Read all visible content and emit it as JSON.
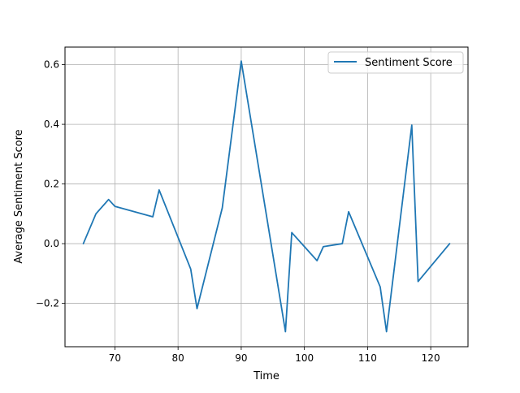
{
  "chart_data": {
    "type": "line",
    "title": "",
    "xlabel": "Time",
    "ylabel": "Average Sentiment Score",
    "xlim": [
      62.1,
      125.9
    ],
    "ylim": [
      -0.3455,
      0.6588
    ],
    "grid": true,
    "legend_position": "upper right",
    "x_ticks": [
      70,
      80,
      90,
      100,
      110,
      120
    ],
    "y_ticks": [
      -0.2,
      0.0,
      0.2,
      0.4,
      0.6
    ],
    "x_tick_labels": [
      "70",
      "80",
      "90",
      "100",
      "110",
      "120"
    ],
    "y_tick_labels": [
      "−0.2",
      "0.0",
      "0.2",
      "0.4",
      "0.6"
    ],
    "series": [
      {
        "name": "Sentiment Score",
        "color": "#1f77b4",
        "x": [
          65,
          67,
          69,
          70,
          76,
          77,
          82,
          83,
          87,
          90,
          97,
          98,
          102,
          103,
          106,
          107,
          112,
          113,
          117,
          118,
          123
        ],
        "y": [
          0.0,
          0.1,
          0.148,
          0.125,
          0.09,
          0.18,
          -0.085,
          -0.218,
          0.12,
          0.612,
          -0.295,
          0.037,
          -0.057,
          -0.01,
          0.0,
          0.107,
          -0.145,
          -0.295,
          0.397,
          -0.127,
          0.0
        ]
      }
    ]
  }
}
